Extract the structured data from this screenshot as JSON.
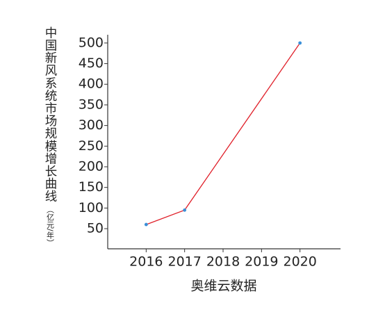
{
  "chart_data": {
    "type": "line",
    "y_label": "中国新风系统市场规模增长曲线",
    "y_unit": "（亿元/年）",
    "x_label": "奥维云数据",
    "x": [
      2016,
      2017,
      2020
    ],
    "xticks": [
      2016,
      2017,
      2018,
      2019,
      2020
    ],
    "xlim": [
      2015,
      2021
    ],
    "series": [
      {
        "color": "#e0202a",
        "marker_color": "#3a8fd8",
        "values": [
          60,
          95,
          500
        ]
      }
    ],
    "ylim": [
      0,
      520
    ],
    "yticks": [
      50,
      100,
      150,
      200,
      250,
      300,
      350,
      400,
      450,
      500
    ]
  }
}
